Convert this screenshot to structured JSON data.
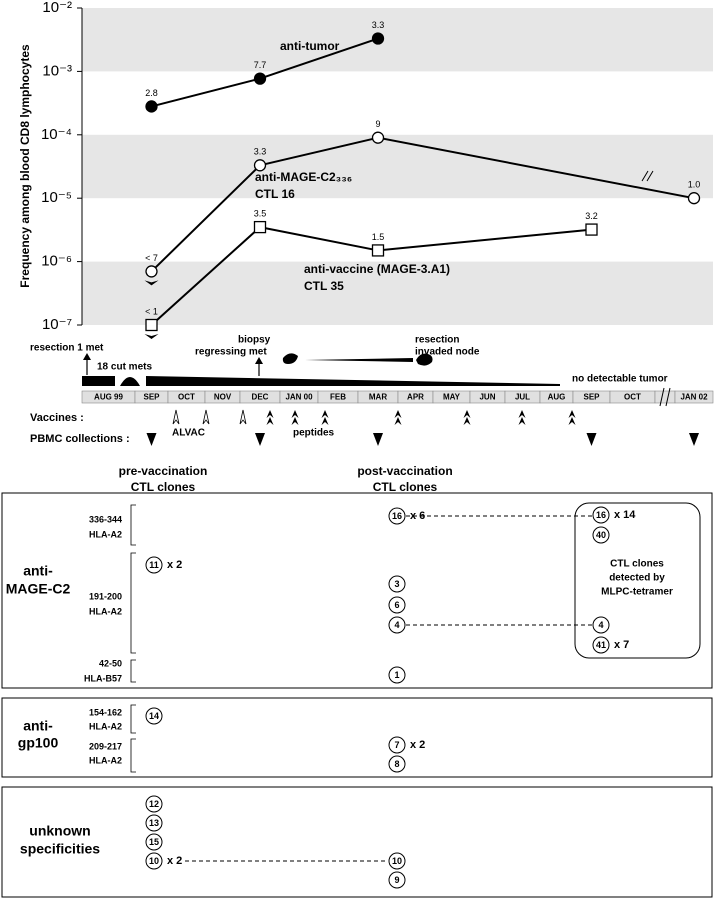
{
  "chart_data": {
    "type": "line",
    "y_label": "Frequency among blood CD8 lymphocytes",
    "categories": [
      "AUG 99",
      "SEP",
      "OCT",
      "NOV",
      "DEC",
      "JAN 00",
      "FEB",
      "MAR",
      "APR",
      "MAY",
      "JUN",
      "JUL",
      "AUG",
      "SEP",
      "OCT",
      null,
      "JAN 02"
    ],
    "series": [
      {
        "name": "anti-tumor",
        "marker": "filled-circle",
        "color": "#000000",
        "values": [
          null,
          0.00028,
          null,
          null,
          0.00077,
          null,
          null,
          0.0033,
          null,
          null,
          null,
          null,
          null,
          null,
          null,
          null,
          null
        ],
        "value_labels": [
          null,
          "2.8",
          null,
          null,
          "7.7",
          null,
          null,
          "3.3",
          null,
          null,
          null,
          null,
          null,
          null,
          null,
          null,
          null
        ]
      },
      {
        "name": "anti-MAGE-C2₃₃₆",
        "clone": "CTL 16",
        "marker": "open-circle",
        "color": "#000000",
        "values": [
          null,
          7e-07,
          null,
          null,
          3.3e-05,
          null,
          null,
          9e-05,
          null,
          null,
          null,
          null,
          null,
          null,
          null,
          null,
          1e-05
        ],
        "value_labels": [
          null,
          "< 7",
          null,
          null,
          "3.3",
          null,
          null,
          "9",
          null,
          null,
          null,
          null,
          null,
          null,
          null,
          null,
          "1.0"
        ]
      },
      {
        "name": "anti-vaccine (MAGE-3.A1)",
        "clone": "CTL 35",
        "marker": "open-square",
        "color": "#000000",
        "values": [
          null,
          1e-07,
          null,
          null,
          3.5e-06,
          null,
          null,
          1.5e-06,
          null,
          null,
          null,
          null,
          null,
          3.2e-06,
          null,
          null,
          null
        ],
        "value_labels": [
          null,
          "< 1",
          null,
          null,
          "3.5",
          null,
          null,
          "1.5",
          null,
          null,
          null,
          null,
          null,
          "3.2",
          null,
          null,
          null
        ]
      }
    ],
    "log_scale": true,
    "bands": true,
    "ylim": [
      1e-07,
      0.01
    ],
    "yticks": [
      {
        "value": 1e-07,
        "label": "10⁻⁷"
      },
      {
        "value": 1e-06,
        "label": "10⁻⁶"
      },
      {
        "value": 1e-05,
        "label": "10⁻⁵"
      },
      {
        "value": 0.0001,
        "label": "10⁻⁴"
      },
      {
        "value": 0.001,
        "label": "10⁻³"
      },
      {
        "value": 0.01,
        "label": "10⁻²"
      }
    ]
  },
  "timeline": {
    "events": [
      "resection 1 met",
      "18 cut mets",
      "biopsy",
      "regressing met",
      "resection",
      "invaded node",
      "no detectable tumor"
    ],
    "vaccines_label": "Vaccines :",
    "alvac": "ALVAC",
    "peptides": "peptides",
    "pbmc_label": "PBMC collections :"
  },
  "clones": {
    "pre_header": [
      "pre-vaccination",
      "CTL clones"
    ],
    "post_header": [
      "post-vaccination",
      "CTL clones"
    ],
    "tetramer_note": [
      "CTL clones",
      "detected by",
      "MLPC-tetramer"
    ],
    "panels": [
      {
        "name": [
          "anti-",
          "MAGE-C2"
        ],
        "epitopes": [
          [
            "336-344",
            "HLA-A2"
          ],
          [
            "191-200",
            "HLA-A2"
          ],
          [
            "42-50",
            "HLA-B57"
          ]
        ],
        "pre": [
          {
            "id": 11,
            "count": "x 2"
          }
        ],
        "post": [
          {
            "id": 16,
            "count": "x 6"
          },
          {
            "id": 3
          },
          {
            "id": 6
          },
          {
            "id": 4
          },
          {
            "id": 1
          }
        ],
        "tetramer": [
          {
            "id": 16,
            "count": "x 14"
          },
          {
            "id": 40
          },
          {
            "id": 4
          },
          {
            "id": 41,
            "count": "x 7"
          }
        ]
      },
      {
        "name": [
          "anti-",
          "gp100"
        ],
        "epitopes": [
          [
            "154-162",
            "HLA-A2"
          ],
          [
            "209-217",
            "HLA-A2"
          ]
        ],
        "pre": [
          {
            "id": 14
          }
        ],
        "post": [
          {
            "id": 7,
            "count": "x 2"
          },
          {
            "id": 8
          }
        ]
      },
      {
        "name": [
          "unknown",
          "specificities"
        ],
        "pre": [
          {
            "id": 12
          },
          {
            "id": 13
          },
          {
            "id": 15
          },
          {
            "id": 10,
            "count": "x 2"
          }
        ],
        "post": [
          {
            "id": 10
          },
          {
            "id": 9
          }
        ]
      }
    ]
  }
}
